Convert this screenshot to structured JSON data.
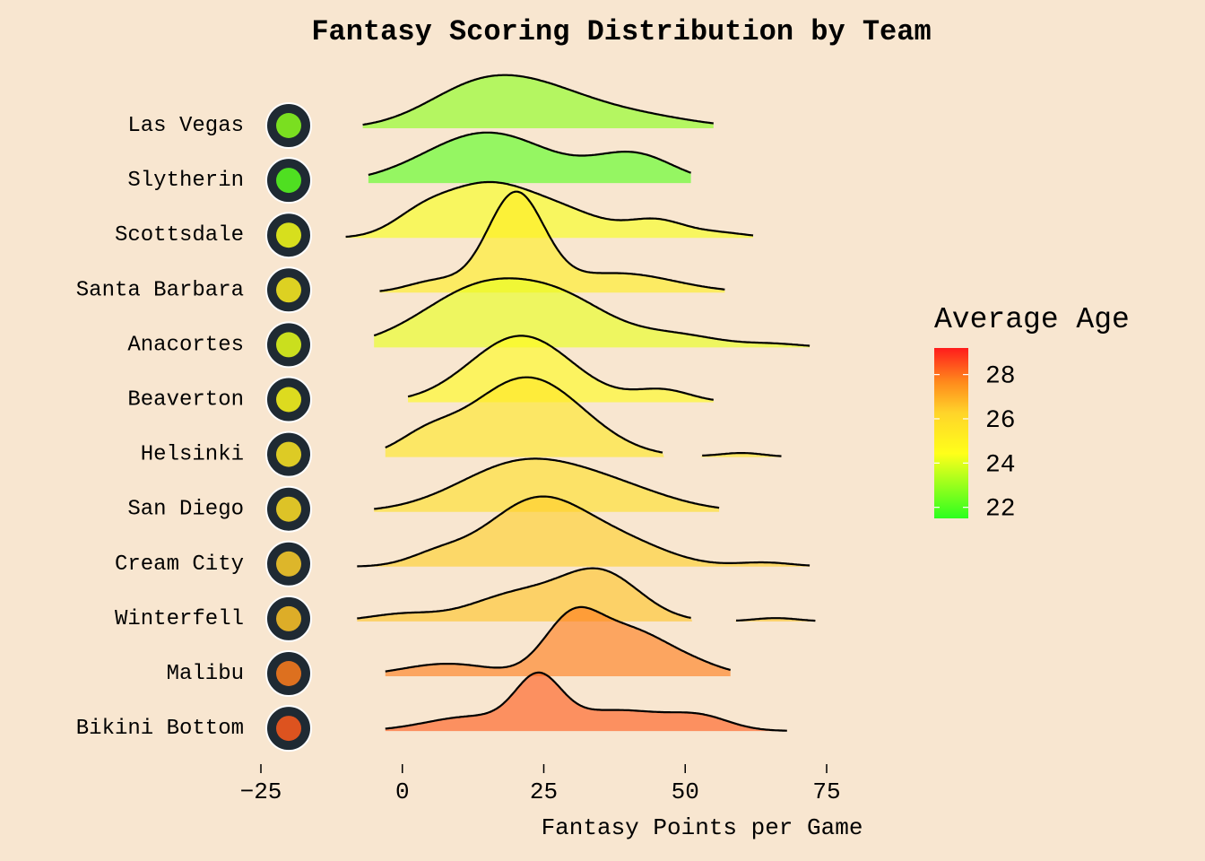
{
  "chart_data": {
    "type": "ridgeline",
    "title": "Fantasy Scoring Distribution by Team",
    "xlabel": "Fantasy Points per Game",
    "ylabel": "",
    "xlim": [
      -25,
      80
    ],
    "x_ticks": [
      -25,
      0,
      25,
      50,
      75
    ],
    "grid": false,
    "legend": {
      "title": "Average Age",
      "position": "right",
      "ticks": [
        22,
        24,
        26,
        28
      ],
      "range": [
        21.5,
        29.2
      ],
      "colormap": "green-yellow-orange-red"
    },
    "series": [
      {
        "name": "Las Vegas",
        "logo": "sin-city-scorpions-logo",
        "avg_age": 22.8,
        "peaks": [
          [
            12,
            0.9,
            9
          ],
          [
            24,
            1.0,
            10
          ],
          [
            42,
            0.32,
            10
          ]
        ],
        "range": [
          -7,
          55
        ],
        "scale": 1.0
      },
      {
        "name": "Slytherin",
        "logo": "slytherin-snake-logo",
        "avg_age": 22.1,
        "peaks": [
          [
            15,
            1.0,
            11
          ],
          [
            41,
            0.55,
            7
          ]
        ],
        "range": [
          -6,
          51
        ],
        "scale": 0.95
      },
      {
        "name": "Scottsdale",
        "logo": "cartoon-kid-basketball-logo",
        "avg_age": 24.3,
        "peaks": [
          [
            3,
            0.3,
            5
          ],
          [
            14,
            1.0,
            8
          ],
          [
            28,
            0.5,
            8
          ],
          [
            45,
            0.33,
            5
          ],
          [
            56,
            0.1,
            5
          ]
        ],
        "range": [
          -10,
          62
        ],
        "scale": 1.05
      },
      {
        "name": "Santa Barbara",
        "logo": "shark-basketball-logo",
        "avg_age": 25.1,
        "peaks": [
          [
            6,
            0.12,
            5
          ],
          [
            20,
            1.0,
            5
          ],
          [
            38,
            0.2,
            10
          ]
        ],
        "range": [
          -4,
          57
        ],
        "scale": 1.9
      },
      {
        "name": "Anacortes",
        "logo": "orcas-logo",
        "avg_age": 24.1,
        "peaks": [
          [
            15,
            1.0,
            11
          ],
          [
            30,
            0.45,
            8
          ],
          [
            48,
            0.2,
            8
          ],
          [
            66,
            0.05,
            5
          ]
        ],
        "range": [
          -5,
          72
        ],
        "scale": 1.3
      },
      {
        "name": "Beaverton",
        "logo": "bigfoot-logo",
        "avg_age": 24.6,
        "peaks": [
          [
            21,
            1.0,
            9
          ],
          [
            46,
            0.18,
            5
          ]
        ],
        "range": [
          1,
          55
        ],
        "scale": 1.25
      },
      {
        "name": "Helsinki",
        "logo": "helsinki-hounds-logo",
        "avg_age": 25.4,
        "peaks": [
          [
            22,
            1.0,
            10
          ],
          [
            4,
            0.2,
            5
          ],
          [
            60,
            0.05,
            4
          ]
        ],
        "range": [
          -3,
          67
        ],
        "scale": 1.5,
        "gap": [
          46,
          53
        ]
      },
      {
        "name": "San Diego",
        "logo": "san-diego-ghost-logo",
        "avg_age": 25.8,
        "peaks": [
          [
            21,
            1.0,
            11
          ],
          [
            38,
            0.4,
            10
          ]
        ],
        "range": [
          -5,
          56
        ],
        "scale": 1.0
      },
      {
        "name": "Cream City",
        "logo": "armored-knight-logo",
        "avg_age": 26.3,
        "peaks": [
          [
            6,
            0.15,
            5
          ],
          [
            24,
            1.0,
            9
          ],
          [
            40,
            0.28,
            8
          ],
          [
            64,
            0.06,
            5
          ]
        ],
        "range": [
          -8,
          72
        ],
        "scale": 1.32
      },
      {
        "name": "Winterfell",
        "logo": "direwolf-logo",
        "avg_age": 26.5,
        "peaks": [
          [
            0,
            0.15,
            6
          ],
          [
            20,
            0.55,
            8
          ],
          [
            35,
            1.0,
            7
          ],
          [
            66,
            0.07,
            4
          ]
        ],
        "range": [
          -8,
          73
        ],
        "scale": 1.0,
        "gap": [
          51,
          59
        ]
      },
      {
        "name": "Malibu",
        "logo": "cow-mascot-logo",
        "avg_age": 27.8,
        "peaks": [
          [
            8,
            0.22,
            8
          ],
          [
            30,
            1.0,
            5
          ],
          [
            40,
            0.7,
            6
          ],
          [
            50,
            0.25,
            6
          ]
        ],
        "range": [
          -3,
          58
        ],
        "scale": 1.3
      },
      {
        "name": "Bikini Bottom",
        "logo": "bbb-logo",
        "avg_age": 28.3,
        "peaks": [
          [
            12,
            0.3,
            8
          ],
          [
            24,
            1.0,
            4
          ],
          [
            38,
            0.45,
            10
          ],
          [
            53,
            0.22,
            5
          ]
        ],
        "range": [
          -3,
          68
        ],
        "scale": 1.1
      }
    ]
  }
}
